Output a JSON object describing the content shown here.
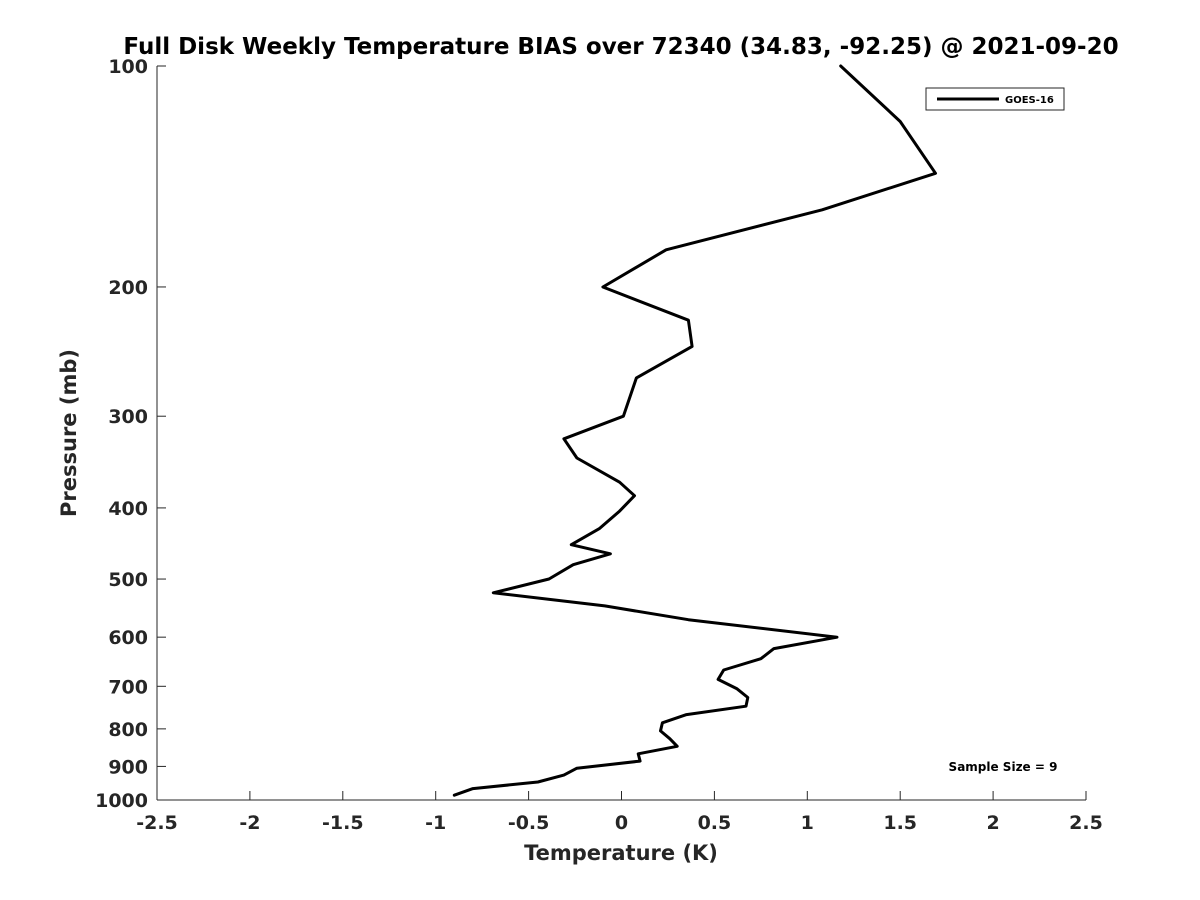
{
  "chart_data": {
    "type": "line",
    "title": "Full Disk Weekly Temperature BIAS over 72340 (34.83, -92.25) @ 2021-09-20",
    "xlabel": "Temperature (K)",
    "ylabel": "Pressure (mb)",
    "xlim": [
      -2.5,
      2.5
    ],
    "ylim": [
      1000,
      100
    ],
    "y_scale": "log",
    "y_reversed": true,
    "x_ticks": [
      -2.5,
      -2,
      -1.5,
      -1,
      -0.5,
      0,
      0.5,
      1,
      1.5,
      2,
      2.5
    ],
    "x_tick_labels": [
      "-2.5",
      "-2",
      "-1.5",
      "-1",
      "-0.5",
      "0",
      "0.5",
      "1",
      "1.5",
      "2",
      "2.5"
    ],
    "y_ticks": [
      100,
      200,
      300,
      400,
      500,
      600,
      700,
      800,
      900,
      1000
    ],
    "y_tick_labels": [
      "100",
      "200",
      "300",
      "400",
      "500",
      "600",
      "700",
      "800",
      "900",
      "1000"
    ],
    "grid": false,
    "legend": {
      "position": "top-right",
      "entries": [
        "GOES-16"
      ]
    },
    "annotation": "Sample Size = 9",
    "series": [
      {
        "name": "GOES-16",
        "color": "#000000",
        "points": [
          {
            "x": 1.18,
            "p": 100
          },
          {
            "x": 1.5,
            "p": 119
          },
          {
            "x": 1.69,
            "p": 140
          },
          {
            "x": 1.08,
            "p": 157
          },
          {
            "x": 0.24,
            "p": 178
          },
          {
            "x": -0.1,
            "p": 200
          },
          {
            "x": 0.36,
            "p": 222
          },
          {
            "x": 0.38,
            "p": 241
          },
          {
            "x": 0.08,
            "p": 266
          },
          {
            "x": 0.01,
            "p": 300
          },
          {
            "x": -0.31,
            "p": 322
          },
          {
            "x": -0.24,
            "p": 342
          },
          {
            "x": -0.01,
            "p": 369
          },
          {
            "x": 0.07,
            "p": 385
          },
          {
            "x": -0.01,
            "p": 404
          },
          {
            "x": -0.12,
            "p": 427
          },
          {
            "x": -0.27,
            "p": 449
          },
          {
            "x": -0.06,
            "p": 462
          },
          {
            "x": -0.26,
            "p": 478
          },
          {
            "x": -0.39,
            "p": 500
          },
          {
            "x": -0.69,
            "p": 522
          },
          {
            "x": -0.09,
            "p": 544
          },
          {
            "x": 0.36,
            "p": 568
          },
          {
            "x": 1.16,
            "p": 600
          },
          {
            "x": 0.82,
            "p": 622
          },
          {
            "x": 0.75,
            "p": 642
          },
          {
            "x": 0.55,
            "p": 665
          },
          {
            "x": 0.52,
            "p": 685
          },
          {
            "x": 0.62,
            "p": 705
          },
          {
            "x": 0.68,
            "p": 725
          },
          {
            "x": 0.67,
            "p": 745
          },
          {
            "x": 0.35,
            "p": 765
          },
          {
            "x": 0.22,
            "p": 785
          },
          {
            "x": 0.21,
            "p": 805
          },
          {
            "x": 0.26,
            "p": 825
          },
          {
            "x": 0.3,
            "p": 845
          },
          {
            "x": 0.09,
            "p": 865
          },
          {
            "x": 0.1,
            "p": 885
          },
          {
            "x": -0.24,
            "p": 905
          },
          {
            "x": -0.31,
            "p": 925
          },
          {
            "x": -0.45,
            "p": 945
          },
          {
            "x": -0.8,
            "p": 965
          },
          {
            "x": -0.9,
            "p": 985
          }
        ]
      }
    ]
  }
}
